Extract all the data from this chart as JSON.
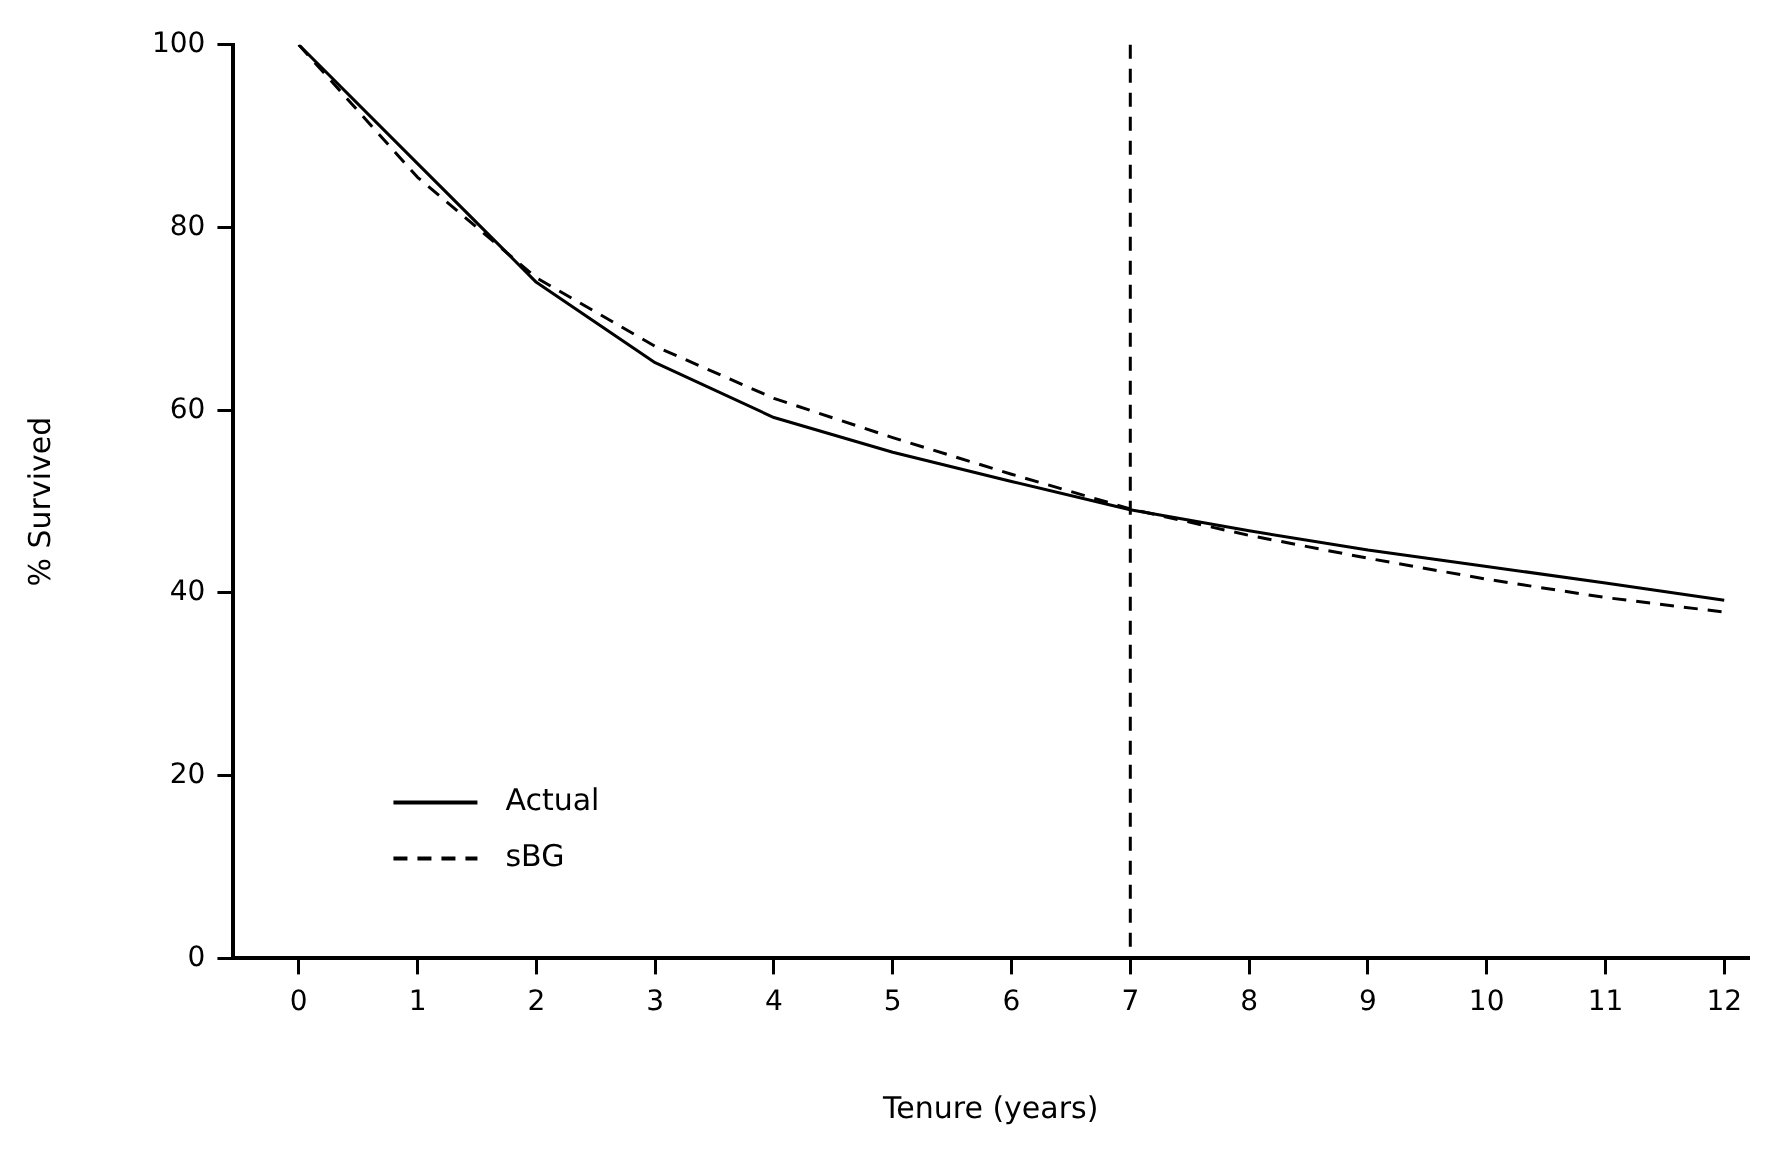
{
  "chart_data": {
    "type": "line",
    "xlabel": "Tenure (years)",
    "ylabel": "% Survived",
    "x": [
      0,
      1,
      2,
      3,
      4,
      5,
      6,
      7,
      8,
      9,
      10,
      11,
      12
    ],
    "series": [
      {
        "name": "Actual",
        "color": "#000000",
        "line_style": "solid",
        "values": [
          100,
          87,
          74,
          65.2,
          59.2,
          55.4,
          52.2,
          49.1,
          46.8,
          44.7,
          42.9,
          41.1,
          39.2
        ]
      },
      {
        "name": "sBG",
        "color": "#000000",
        "line_style": "dashed",
        "values": [
          100,
          85.5,
          74.5,
          67,
          61.3,
          57,
          53,
          49.2,
          46.3,
          43.8,
          41.5,
          39.5,
          37.9
        ]
      }
    ],
    "xlim": [
      -0.55,
      12.2
    ],
    "xticks": [
      0,
      1,
      2,
      3,
      4,
      5,
      6,
      7,
      8,
      9,
      10,
      11,
      12
    ],
    "ylim": [
      0,
      100
    ],
    "yticks": [
      0,
      20,
      40,
      60,
      80,
      100
    ],
    "ref_lines": [
      {
        "axis": "x",
        "value": 7,
        "line_style": "dashed",
        "color": "#000000"
      }
    ],
    "grid": false,
    "legend": "bottom left",
    "marker": "none"
  }
}
